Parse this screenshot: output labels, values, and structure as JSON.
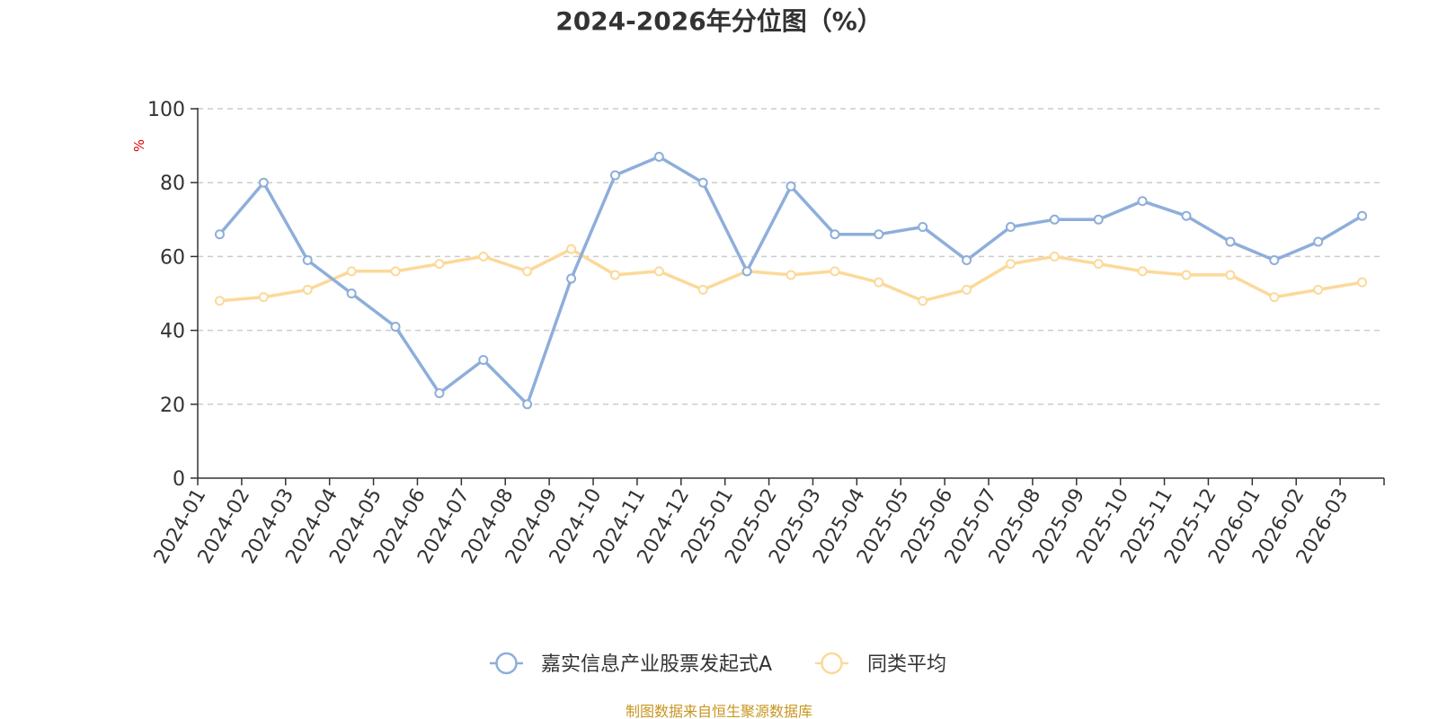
{
  "chart_data": {
    "type": "line",
    "title": "2024-2026年分位图（%）",
    "ylabel": "%",
    "xlabel": "",
    "ylim": [
      0,
      100
    ],
    "yticks": [
      0,
      20,
      40,
      60,
      80,
      100
    ],
    "grid": true,
    "legend_position": "bottom-center",
    "categories": [
      "2024-01",
      "2024-02",
      "2024-03",
      "2024-04",
      "2024-05",
      "2024-06",
      "2024-07",
      "2024-08",
      "2024-09",
      "2024-10",
      "2024-11",
      "2024-12",
      "2025-01",
      "2025-02",
      "2025-03",
      "2025-04",
      "2025-05",
      "2025-06",
      "2025-07",
      "2025-08",
      "2025-09",
      "2025-10",
      "2025-11",
      "2025-12",
      "2026-01",
      "2026-02",
      "2026-03"
    ],
    "series": [
      {
        "name": "嘉实信息产业股票发起式A",
        "color": "#8eaedb",
        "values": [
          66,
          80,
          59,
          50,
          41,
          23,
          32,
          20,
          54,
          82,
          87,
          80,
          56,
          79,
          66,
          66,
          68,
          59,
          68,
          70,
          70,
          75,
          71,
          64,
          59,
          64,
          71
        ]
      },
      {
        "name": "同类平均",
        "color": "#fcd99a",
        "values": [
          48,
          49,
          51,
          56,
          56,
          58,
          60,
          56,
          62,
          55,
          56,
          51,
          56,
          55,
          56,
          53,
          48,
          51,
          58,
          60,
          58,
          56,
          55,
          55,
          49,
          51,
          53
        ]
      }
    ],
    "source": "制图数据来自恒生聚源数据库",
    "source_color": "#c8961e"
  }
}
